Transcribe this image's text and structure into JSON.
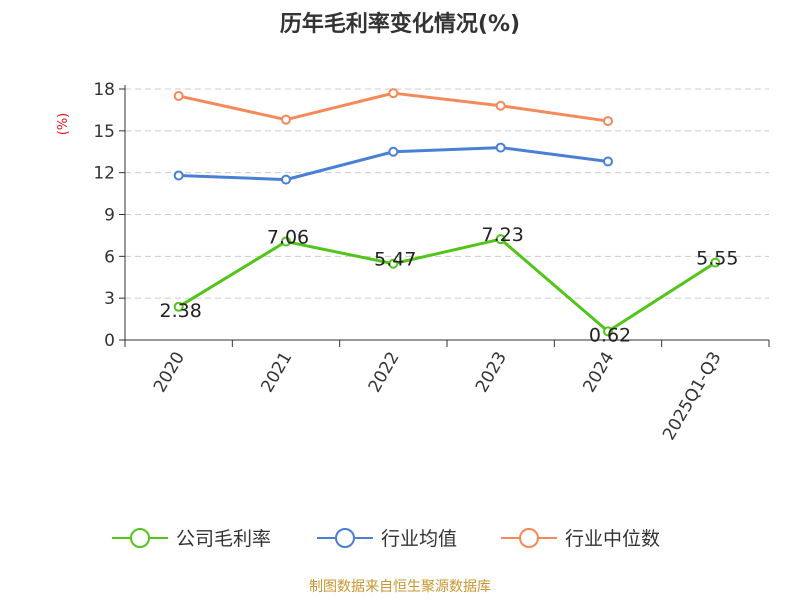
{
  "chart_data": {
    "type": "line",
    "title": "历年毛利率变化情况(%)",
    "ylabel": "(%)",
    "xlabel": "",
    "categories": [
      "2020",
      "2021",
      "2022",
      "2023",
      "2024",
      "2025Q1-Q3"
    ],
    "ylim": [
      0,
      18
    ],
    "yticks": [
      0,
      3,
      6,
      9,
      12,
      15,
      18
    ],
    "grid": true,
    "legend_position": "bottom",
    "series": [
      {
        "name": "公司毛利率",
        "color": "#52c41a",
        "values": [
          2.38,
          7.06,
          5.47,
          7.23,
          0.62,
          5.55
        ],
        "data_labels": [
          "2.38",
          "7.06",
          "5.47",
          "7.23",
          "0.62",
          "5.55"
        ]
      },
      {
        "name": "行业均值",
        "color": "#4a7fd6",
        "values": [
          11.8,
          11.5,
          13.5,
          13.8,
          12.8,
          null
        ]
      },
      {
        "name": "行业中位数",
        "color": "#f5895a",
        "values": [
          17.5,
          15.8,
          17.7,
          16.8,
          15.7,
          null
        ]
      }
    ],
    "ylabel_color": "#e0141e"
  },
  "footer": {
    "source": "制图数据来自恒生聚源数据库"
  }
}
